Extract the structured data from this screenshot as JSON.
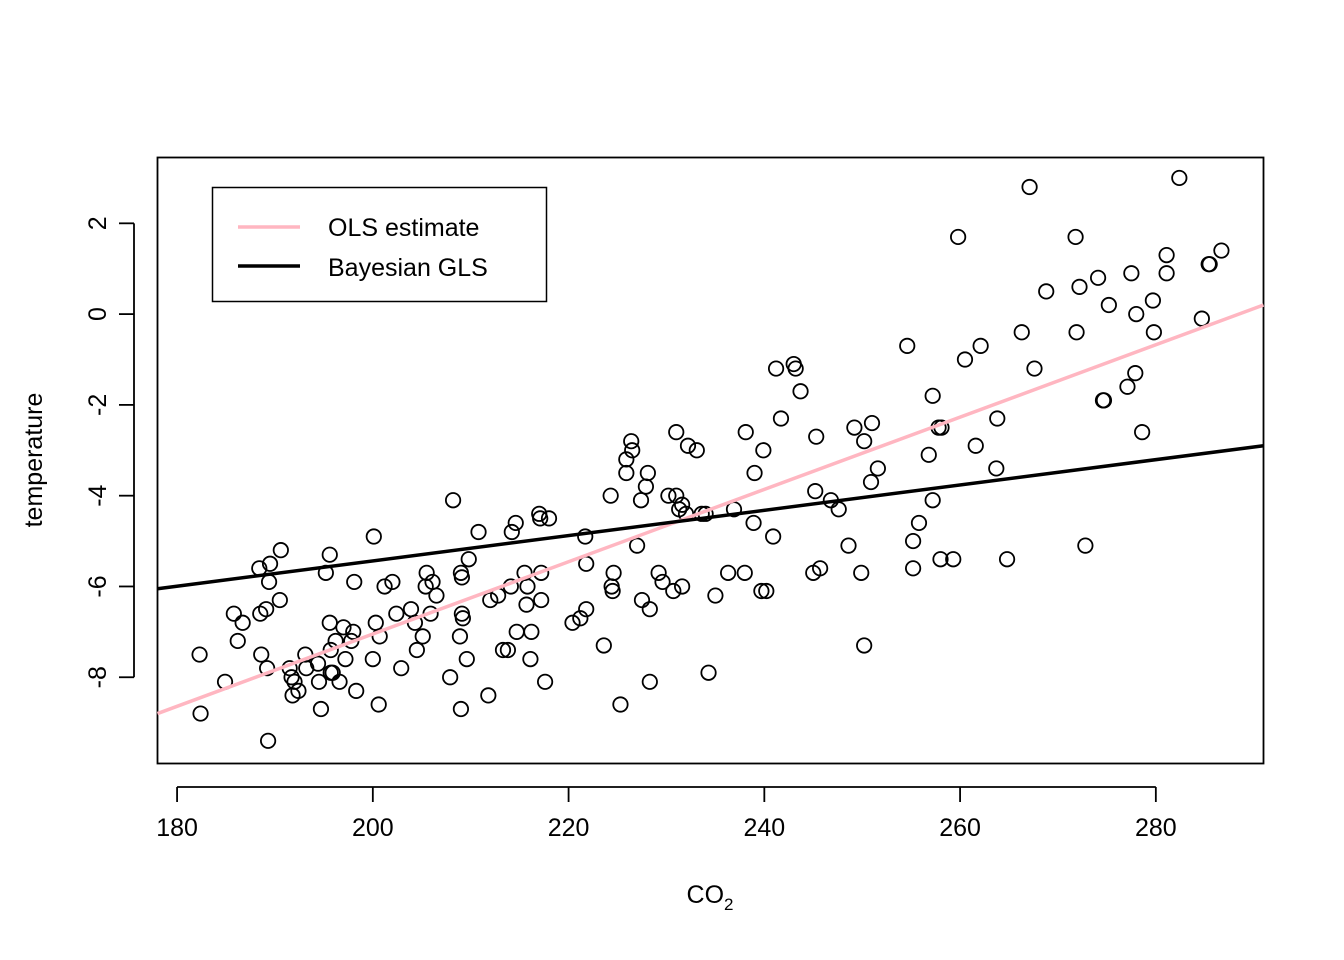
{
  "chart_data": {
    "type": "scatter",
    "xlabel_main": "CO",
    "xlabel_sub": "2",
    "ylabel": "temperature",
    "xlim": [
      178,
      291
    ],
    "ylim": [
      -9.9,
      3.45
    ],
    "x_ticks": [
      180,
      200,
      220,
      240,
      260,
      280
    ],
    "y_ticks": [
      -8,
      -6,
      -4,
      -2,
      0,
      2
    ],
    "legend_position": "top-left",
    "legend": [
      {
        "label": "OLS estimate",
        "color": "#ffb6c1"
      },
      {
        "label": "Bayesian GLS",
        "color": "#000000"
      }
    ],
    "lines": [
      {
        "name": "OLS estimate",
        "color": "#ffb6c1",
        "x": [
          178,
          291
        ],
        "y": [
          -8.8,
          0.2
        ]
      },
      {
        "name": "Bayesian GLS",
        "color": "#000000",
        "x": [
          178,
          291
        ],
        "y": [
          -6.05,
          -2.9
        ]
      }
    ],
    "points": [
      [
        182.3,
        -7.5
      ],
      [
        182.4,
        -8.8
      ],
      [
        184.9,
        -8.1
      ],
      [
        185.8,
        -6.6
      ],
      [
        186.2,
        -7.2
      ],
      [
        186.7,
        -6.8
      ],
      [
        188.4,
        -5.6
      ],
      [
        188.5,
        -6.6
      ],
      [
        188.6,
        -7.5
      ],
      [
        189.1,
        -6.5
      ],
      [
        189.2,
        -7.8
      ],
      [
        189.3,
        -9.4
      ],
      [
        189.4,
        -5.9
      ],
      [
        189.5,
        -5.5
      ],
      [
        190.5,
        -6.3
      ],
      [
        190.6,
        -5.2
      ],
      [
        191.5,
        -7.8
      ],
      [
        191.7,
        -8.0
      ],
      [
        191.8,
        -8.4
      ],
      [
        192.0,
        -8.1
      ],
      [
        192.4,
        -8.3
      ],
      [
        193.1,
        -7.5
      ],
      [
        193.2,
        -7.8
      ],
      [
        194.4,
        -7.7
      ],
      [
        194.5,
        -8.1
      ],
      [
        194.7,
        -8.7
      ],
      [
        195.2,
        -5.7
      ],
      [
        195.6,
        -5.3
      ],
      [
        195.6,
        -6.8
      ],
      [
        195.7,
        -7.4
      ],
      [
        195.7,
        -7.9
      ],
      [
        195.9,
        -7.9
      ],
      [
        196.2,
        -7.2
      ],
      [
        196.6,
        -8.1
      ],
      [
        197.0,
        -6.9
      ],
      [
        197.2,
        -7.6
      ],
      [
        197.8,
        -7.2
      ],
      [
        198.0,
        -7.0
      ],
      [
        198.1,
        -5.9
      ],
      [
        198.3,
        -8.3
      ],
      [
        200.0,
        -7.6
      ],
      [
        200.1,
        -4.9
      ],
      [
        200.3,
        -6.8
      ],
      [
        200.6,
        -8.6
      ],
      [
        200.7,
        -7.1
      ],
      [
        201.2,
        -6.0
      ],
      [
        202.0,
        -5.9
      ],
      [
        202.4,
        -6.6
      ],
      [
        202.9,
        -7.8
      ],
      [
        203.9,
        -6.5
      ],
      [
        204.3,
        -6.8
      ],
      [
        204.5,
        -7.4
      ],
      [
        205.1,
        -7.1
      ],
      [
        205.4,
        -6.0
      ],
      [
        205.5,
        -5.7
      ],
      [
        205.9,
        -6.6
      ],
      [
        206.1,
        -5.9
      ],
      [
        206.5,
        -6.2
      ],
      [
        207.9,
        -8.0
      ],
      [
        208.2,
        -4.1
      ],
      [
        208.9,
        -7.1
      ],
      [
        209.0,
        -8.7
      ],
      [
        209.0,
        -5.7
      ],
      [
        209.1,
        -5.8
      ],
      [
        209.1,
        -6.6
      ],
      [
        209.2,
        -6.7
      ],
      [
        209.6,
        -7.6
      ],
      [
        209.8,
        -5.4
      ],
      [
        210.8,
        -4.8
      ],
      [
        211.8,
        -8.4
      ],
      [
        212.0,
        -6.3
      ],
      [
        212.8,
        -6.2
      ],
      [
        213.3,
        -7.4
      ],
      [
        213.8,
        -7.4
      ],
      [
        214.1,
        -6.0
      ],
      [
        214.2,
        -4.8
      ],
      [
        214.6,
        -4.6
      ],
      [
        214.7,
        -7.0
      ],
      [
        215.5,
        -5.7
      ],
      [
        215.7,
        -6.4
      ],
      [
        215.8,
        -6.0
      ],
      [
        216.1,
        -7.6
      ],
      [
        216.2,
        -7.0
      ],
      [
        217.0,
        -4.4
      ],
      [
        217.1,
        -4.5
      ],
      [
        217.2,
        -6.3
      ],
      [
        217.2,
        -5.7
      ],
      [
        217.6,
        -8.1
      ],
      [
        218.0,
        -4.5
      ],
      [
        220.4,
        -6.8
      ],
      [
        221.2,
        -6.7
      ],
      [
        221.7,
        -4.9
      ],
      [
        221.8,
        -6.5
      ],
      [
        221.8,
        -5.5
      ],
      [
        223.6,
        -7.3
      ],
      [
        224.3,
        -4.0
      ],
      [
        224.4,
        -6.0
      ],
      [
        224.5,
        -6.1
      ],
      [
        224.6,
        -5.7
      ],
      [
        225.3,
        -8.6
      ],
      [
        225.9,
        -3.2
      ],
      [
        225.9,
        -3.5
      ],
      [
        226.4,
        -2.8
      ],
      [
        226.5,
        -3.0
      ],
      [
        227.0,
        -5.1
      ],
      [
        227.4,
        -4.1
      ],
      [
        227.5,
        -6.3
      ],
      [
        227.9,
        -3.8
      ],
      [
        228.1,
        -3.5
      ],
      [
        228.3,
        -6.5
      ],
      [
        228.3,
        -8.1
      ],
      [
        229.2,
        -5.7
      ],
      [
        229.6,
        -5.9
      ],
      [
        230.2,
        -4.0
      ],
      [
        230.7,
        -6.1
      ],
      [
        231.0,
        -4.0
      ],
      [
        231.0,
        -2.6
      ],
      [
        231.3,
        -4.3
      ],
      [
        231.6,
        -4.2
      ],
      [
        231.6,
        -6.0
      ],
      [
        232.0,
        -4.4
      ],
      [
        232.2,
        -2.9
      ],
      [
        233.1,
        -3.0
      ],
      [
        233.6,
        -4.4
      ],
      [
        234.0,
        -4.4
      ],
      [
        234.3,
        -7.9
      ],
      [
        235.0,
        -6.2
      ],
      [
        236.3,
        -5.7
      ],
      [
        236.9,
        -4.3
      ],
      [
        238.0,
        -5.7
      ],
      [
        238.1,
        -2.6
      ],
      [
        238.9,
        -4.6
      ],
      [
        239.0,
        -3.5
      ],
      [
        239.7,
        -6.1
      ],
      [
        239.9,
        -3.0
      ],
      [
        240.2,
        -6.1
      ],
      [
        240.9,
        -4.9
      ],
      [
        241.2,
        -1.2
      ],
      [
        241.7,
        -2.3
      ],
      [
        243.0,
        -1.1
      ],
      [
        243.2,
        -1.2
      ],
      [
        243.7,
        -1.7
      ],
      [
        245.0,
        -5.7
      ],
      [
        245.2,
        -3.9
      ],
      [
        245.3,
        -2.7
      ],
      [
        245.7,
        -5.6
      ],
      [
        246.8,
        -4.1
      ],
      [
        247.6,
        -4.3
      ],
      [
        248.6,
        -5.1
      ],
      [
        249.2,
        -2.5
      ],
      [
        249.9,
        -5.7
      ],
      [
        250.2,
        -7.3
      ],
      [
        250.2,
        -2.8
      ],
      [
        250.9,
        -3.7
      ],
      [
        251.0,
        -2.4
      ],
      [
        251.6,
        -3.4
      ],
      [
        254.6,
        -0.7
      ],
      [
        255.2,
        -5.0
      ],
      [
        255.2,
        -5.6
      ],
      [
        255.8,
        -4.6
      ],
      [
        256.8,
        -3.1
      ],
      [
        257.2,
        -4.1
      ],
      [
        257.2,
        -1.8
      ],
      [
        257.8,
        -2.5
      ],
      [
        258.0,
        -5.4
      ],
      [
        258.1,
        -2.5
      ],
      [
        259.3,
        -5.4
      ],
      [
        259.8,
        1.7
      ],
      [
        260.5,
        -1.0
      ],
      [
        261.6,
        -2.9
      ],
      [
        262.1,
        -0.7
      ],
      [
        263.7,
        -3.4
      ],
      [
        263.8,
        -2.3
      ],
      [
        264.8,
        -5.4
      ],
      [
        266.3,
        -0.4
      ],
      [
        267.1,
        2.8
      ],
      [
        267.6,
        -1.2
      ],
      [
        268.8,
        0.5
      ],
      [
        271.8,
        1.7
      ],
      [
        271.9,
        -0.4
      ],
      [
        272.2,
        0.6
      ],
      [
        272.8,
        -5.1
      ],
      [
        274.1,
        0.8
      ],
      [
        274.6,
        -1.9
      ],
      [
        274.7,
        -1.9
      ],
      [
        275.2,
        0.2
      ],
      [
        277.1,
        -1.6
      ],
      [
        277.5,
        0.9
      ],
      [
        277.9,
        -1.3
      ],
      [
        278.0,
        0.0
      ],
      [
        278.6,
        -2.6
      ],
      [
        279.7,
        0.3
      ],
      [
        279.8,
        -0.4
      ],
      [
        281.1,
        1.3
      ],
      [
        281.1,
        0.9
      ],
      [
        282.4,
        3.0
      ],
      [
        284.7,
        -0.1
      ],
      [
        285.4,
        1.1
      ],
      [
        285.5,
        1.1
      ],
      [
        286.7,
        1.4
      ]
    ]
  }
}
